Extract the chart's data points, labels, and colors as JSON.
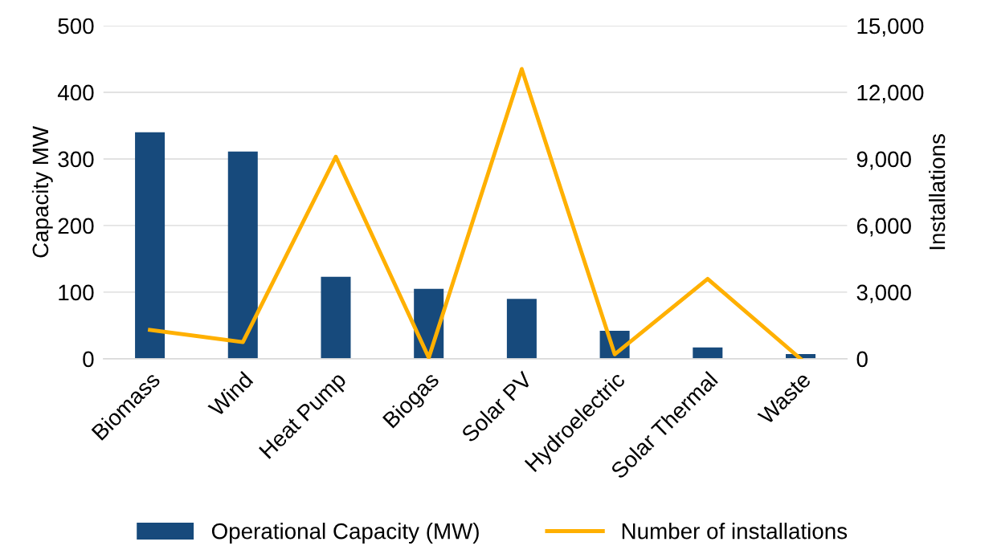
{
  "chart_data": {
    "type": "bar",
    "categories": [
      "Biomass",
      "Wind",
      "Heat Pump",
      "Biogas",
      "Solar PV",
      "Hydroelectric",
      "Solar Thermal",
      "Waste"
    ],
    "series": [
      {
        "name": "Operational Capacity (MW)",
        "color": "#174a7c",
        "values": [
          340,
          311,
          123,
          105,
          90,
          42,
          17,
          7
        ]
      },
      {
        "name": "Number of installations",
        "type": "line",
        "axis": "y2",
        "color": "#ffb000",
        "values": [
          1300,
          750,
          9100,
          50,
          13050,
          200,
          3600,
          0
        ]
      }
    ],
    "ylabel": "Capacity MW",
    "y2label": "Installations",
    "ylim": [
      0,
      500
    ],
    "yticks": [
      0,
      100,
      200,
      300,
      400,
      500
    ],
    "y2lim": [
      0,
      15000
    ],
    "y2ticks": [
      {
        "value": 0,
        "label": "0"
      },
      {
        "value": 3000,
        "label": "3,000"
      },
      {
        "value": 6000,
        "label": "6,000"
      },
      {
        "value": 9000,
        "label": "9,000"
      },
      {
        "value": 12000,
        "label": "12,000"
      },
      {
        "value": 15000,
        "label": "15,000"
      }
    ],
    "grid": "y",
    "legend": "bottom",
    "marker": "none",
    "line_style": "solid"
  }
}
